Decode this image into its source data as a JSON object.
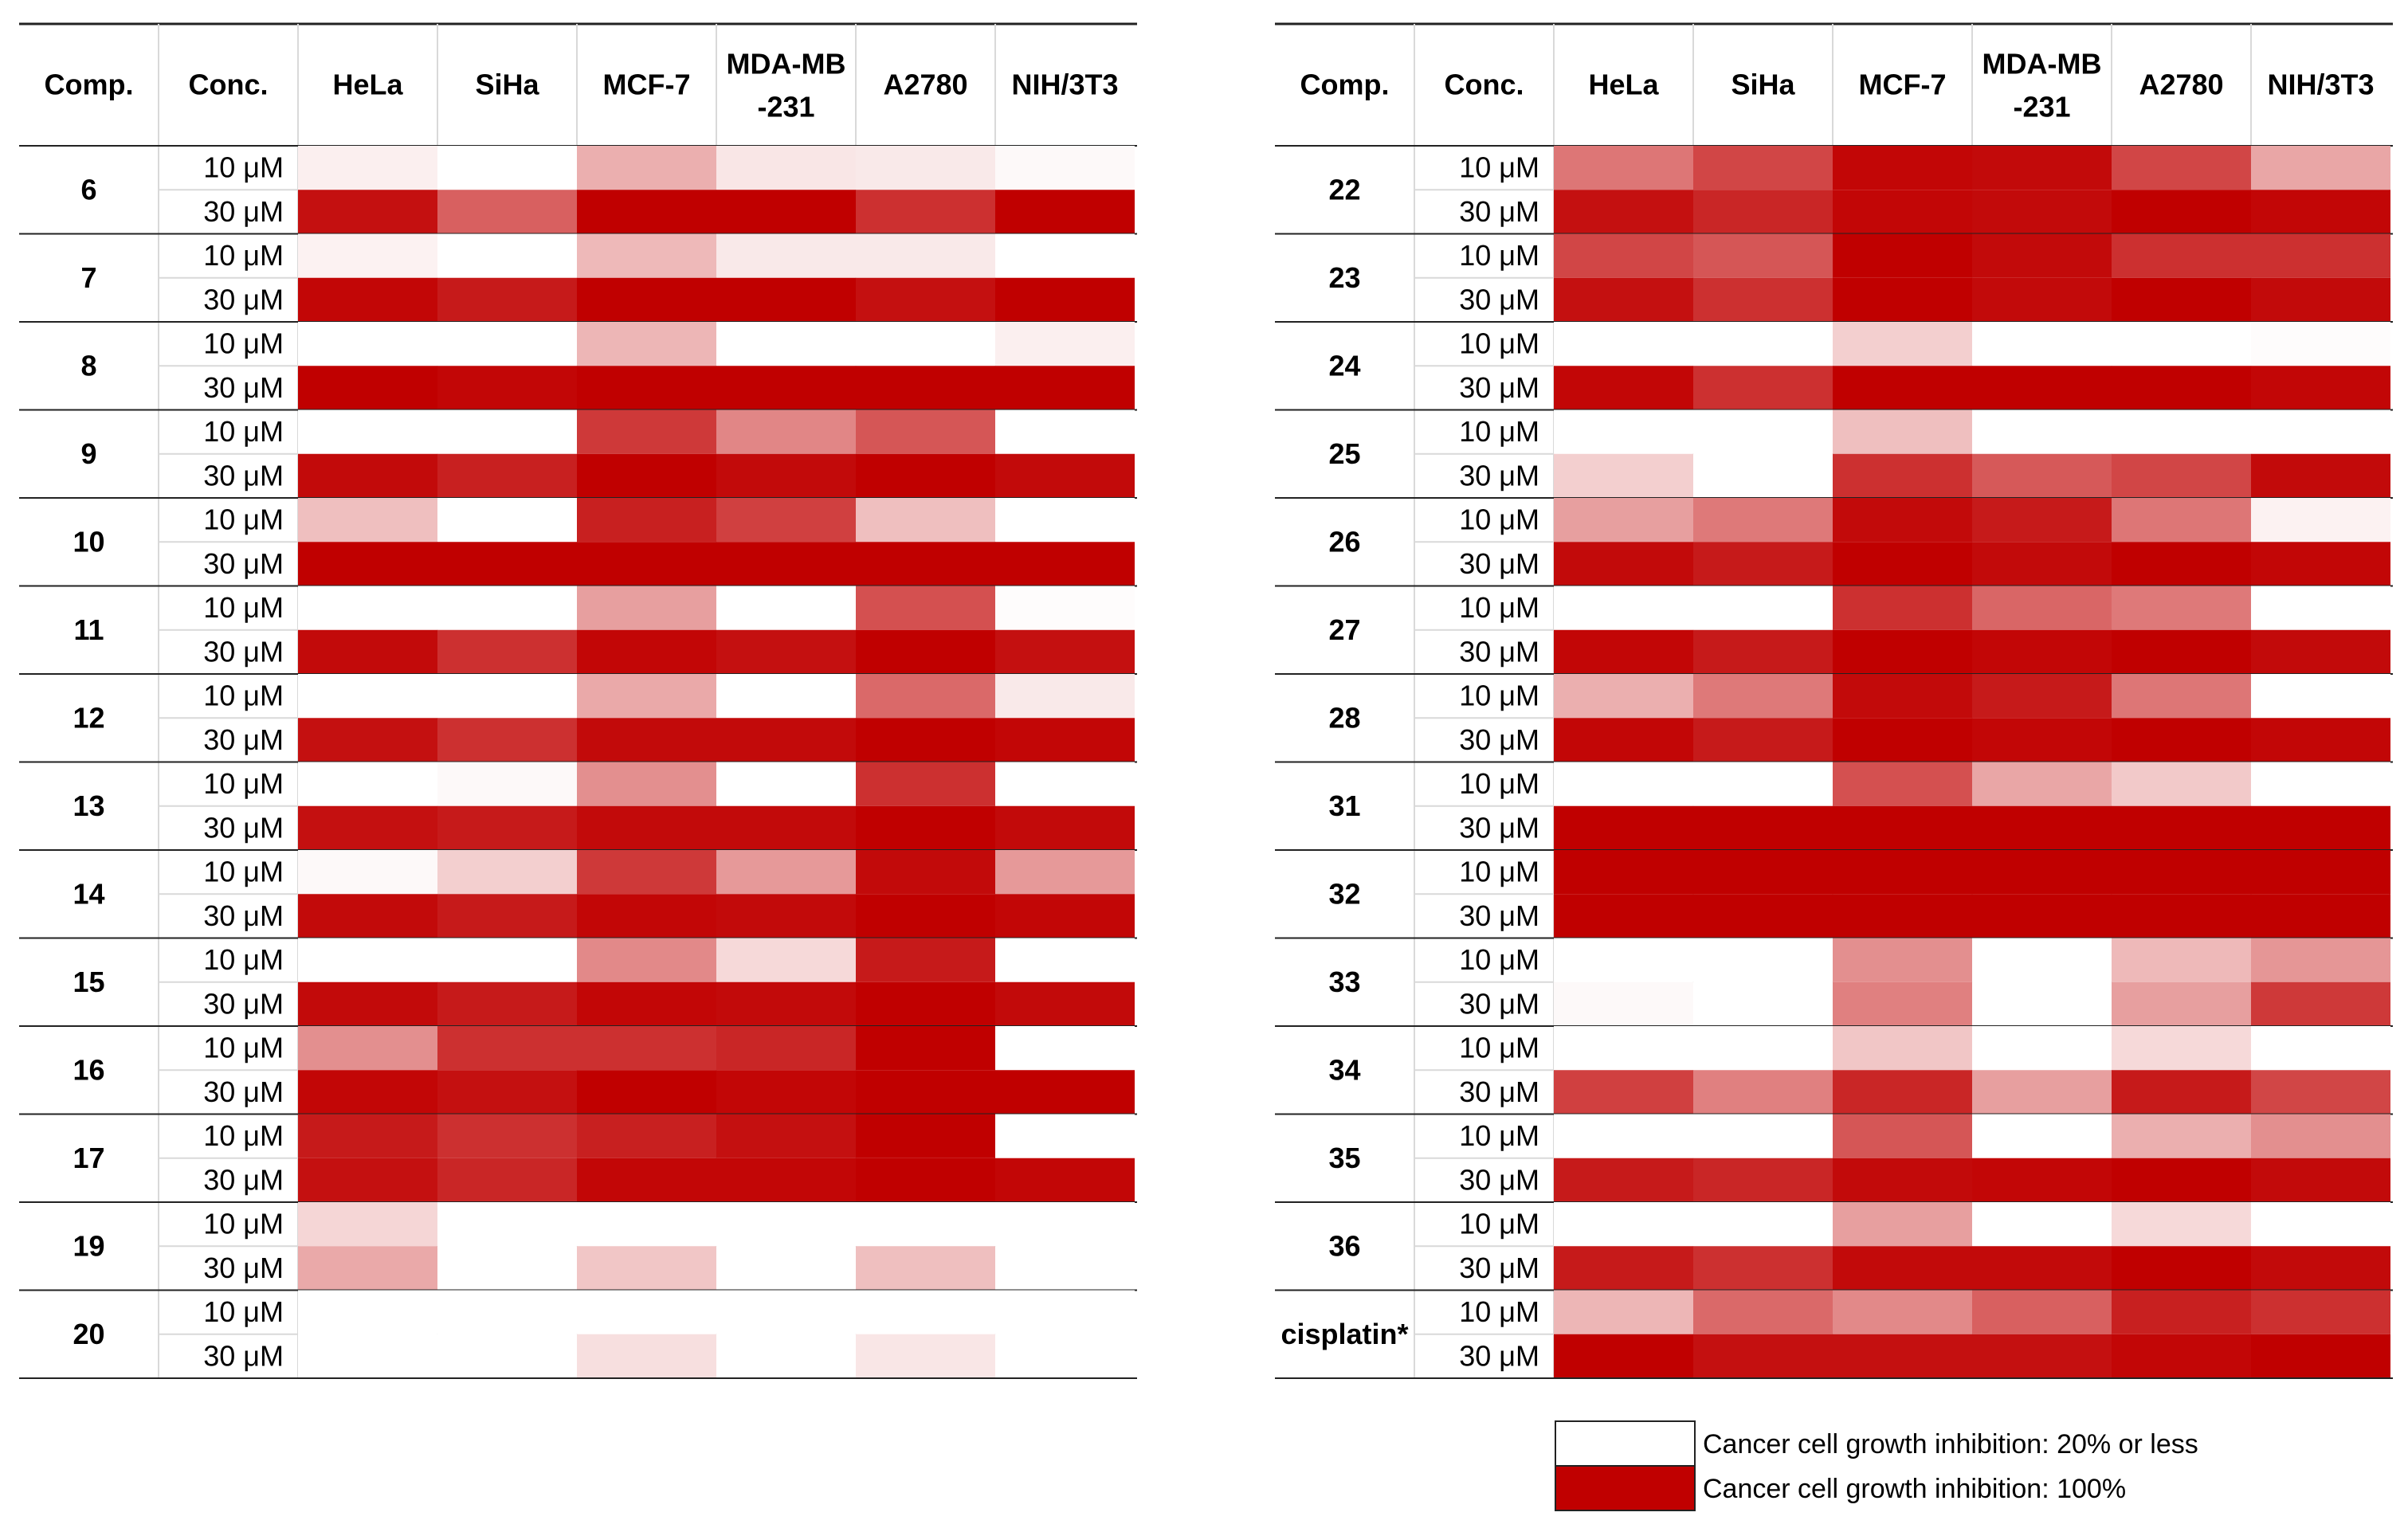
{
  "chart_data": {
    "type": "heatmap",
    "title": "",
    "value_meaning": "Cancer cell growth inhibition (%), color scale from white (20% or less) to red (100%)",
    "columns": [
      "Comp.",
      "Conc.",
      "HeLa",
      "SiHa",
      "MCF-7",
      "MDA-MB\n-231",
      "A2780",
      "NIH/3T3"
    ],
    "column_lines": [
      [
        "Comp."
      ],
      [
        "Conc."
      ],
      [
        "HeLa"
      ],
      [
        "SiHa"
      ],
      [
        "MCF-7"
      ],
      [
        "MDA-MB",
        "-231"
      ],
      [
        "A2780"
      ],
      [
        "NIH/3T3"
      ]
    ],
    "cell_lines": [
      "HeLa",
      "SiHa",
      "MCF-7",
      "MDA-MB-231",
      "A2780",
      "NIH/3T3"
    ],
    "concentrations": [
      "10 μM",
      "30 μM"
    ],
    "scale": {
      "min_label": "20% or less",
      "max_label": "100%",
      "min_color": "#ffffff",
      "max_color": "#c00000"
    },
    "panels": [
      {
        "compounds": [
          {
            "name": "6",
            "values": [
              [
                25,
                20,
                45,
                28,
                27,
                22
              ],
              [
                95,
                70,
                100,
                100,
                85,
                100
              ]
            ]
          },
          {
            "name": "7",
            "values": [
              [
                24,
                20,
                42,
                27,
                27,
                20
              ],
              [
                98,
                92,
                100,
                100,
                95,
                100
              ]
            ]
          },
          {
            "name": "8",
            "values": [
              [
                20,
                20,
                43,
                20,
                20,
                25
              ],
              [
                100,
                98,
                100,
                100,
                100,
                100
              ]
            ]
          },
          {
            "name": "9",
            "values": [
              [
                20,
                20,
                82,
                58,
                73,
                20
              ],
              [
                97,
                90,
                100,
                97,
                100,
                97
              ]
            ]
          },
          {
            "name": "10",
            "values": [
              [
                40,
                20,
                90,
                80,
                40,
                20
              ],
              [
                100,
                100,
                100,
                100,
                100,
                100
              ]
            ]
          },
          {
            "name": "11",
            "values": [
              [
                20,
                20,
                50,
                20,
                75,
                21
              ],
              [
                97,
                85,
                98,
                95,
                100,
                95
              ]
            ]
          },
          {
            "name": "12",
            "values": [
              [
                20,
                20,
                47,
                20,
                67,
                27
              ],
              [
                95,
                85,
                97,
                97,
                100,
                98
              ]
            ]
          },
          {
            "name": "13",
            "values": [
              [
                20,
                22,
                55,
                20,
                85,
                20
              ],
              [
                95,
                92,
                97,
                97,
                100,
                97
              ]
            ]
          },
          {
            "name": "14",
            "values": [
              [
                22,
                35,
                82,
                52,
                97,
                52
              ],
              [
                97,
                92,
                98,
                97,
                100,
                98
              ]
            ]
          },
          {
            "name": "15",
            "values": [
              [
                20,
                20,
                57,
                32,
                92,
                20
              ],
              [
                97,
                92,
                98,
                97,
                100,
                97
              ]
            ]
          },
          {
            "name": "16",
            "values": [
              [
                55,
                85,
                85,
                88,
                100,
                20
              ],
              [
                98,
                95,
                100,
                98,
                100,
                100
              ]
            ]
          },
          {
            "name": "17",
            "values": [
              [
                92,
                85,
                90,
                95,
                100,
                20
              ],
              [
                95,
                88,
                98,
                98,
                100,
                98
              ]
            ]
          },
          {
            "name": "19",
            "values": [
              [
                33,
                20,
                20,
                20,
                20,
                20
              ],
              [
                47,
                20,
                38,
                20,
                40,
                20
              ]
            ]
          },
          {
            "name": "20",
            "values": [
              [
                20,
                20,
                20,
                20,
                20,
                20
              ],
              [
                20,
                20,
                30,
                20,
                28,
                20
              ]
            ]
          }
        ]
      },
      {
        "compounds": [
          {
            "name": "22",
            "values": [
              [
                63,
                78,
                98,
                97,
                78,
                48
              ],
              [
                95,
                88,
                98,
                97,
                100,
                98
              ]
            ]
          },
          {
            "name": "23",
            "values": [
              [
                78,
                73,
                100,
                97,
                85,
                85
              ],
              [
                95,
                85,
                100,
                97,
                100,
                97
              ]
            ]
          },
          {
            "name": "24",
            "values": [
              [
                20,
                20,
                35,
                20,
                20,
                21
              ],
              [
                98,
                85,
                100,
                100,
                100,
                98
              ]
            ]
          },
          {
            "name": "25",
            "values": [
              [
                20,
                20,
                40,
                20,
                20,
                20
              ],
              [
                35,
                20,
                85,
                72,
                78,
                97
              ]
            ]
          },
          {
            "name": "26",
            "values": [
              [
                50,
                62,
                97,
                92,
                63,
                24
              ],
              [
                97,
                92,
                100,
                97,
                100,
                98
              ]
            ]
          },
          {
            "name": "27",
            "values": [
              [
                20,
                20,
                85,
                68,
                62,
                20
              ],
              [
                98,
                92,
                100,
                98,
                100,
                97
              ]
            ]
          },
          {
            "name": "28",
            "values": [
              [
                45,
                62,
                97,
                92,
                63,
                20
              ],
              [
                98,
                92,
                100,
                98,
                100,
                98
              ]
            ]
          },
          {
            "name": "31",
            "values": [
              [
                20,
                20,
                75,
                48,
                37,
                20
              ],
              [
                100,
                100,
                100,
                100,
                100,
                100
              ]
            ]
          },
          {
            "name": "32",
            "values": [
              [
                100,
                100,
                100,
                100,
                100,
                100
              ],
              [
                100,
                100,
                100,
                100,
                100,
                100
              ]
            ]
          },
          {
            "name": "33",
            "values": [
              [
                20,
                20,
                55,
                20,
                42,
                53
              ],
              [
                22,
                20,
                60,
                20,
                50,
                82
              ]
            ]
          },
          {
            "name": "34",
            "values": [
              [
                20,
                20,
                38,
                20,
                32,
                20
              ],
              [
                80,
                60,
                88,
                50,
                92,
                78
              ]
            ]
          },
          {
            "name": "35",
            "values": [
              [
                20,
                20,
                73,
                20,
                45,
                55
              ],
              [
                92,
                88,
                97,
                98,
                100,
                97
              ]
            ]
          },
          {
            "name": "36",
            "values": [
              [
                20,
                20,
                50,
                20,
                32,
                20
              ],
              [
                92,
                85,
                97,
                97,
                100,
                97
              ]
            ]
          },
          {
            "name": "cisplatin*",
            "values": [
              [
                43,
                67,
                57,
                70,
                90,
                85
              ],
              [
                100,
                95,
                95,
                95,
                98,
                105
              ]
            ]
          }
        ]
      }
    ],
    "legend": [
      {
        "label": "Cancer cell growth inhibition: 20% or less",
        "value": 20
      },
      {
        "label": "Cancer cell growth inhibition: 100%",
        "value": 100
      }
    ]
  }
}
